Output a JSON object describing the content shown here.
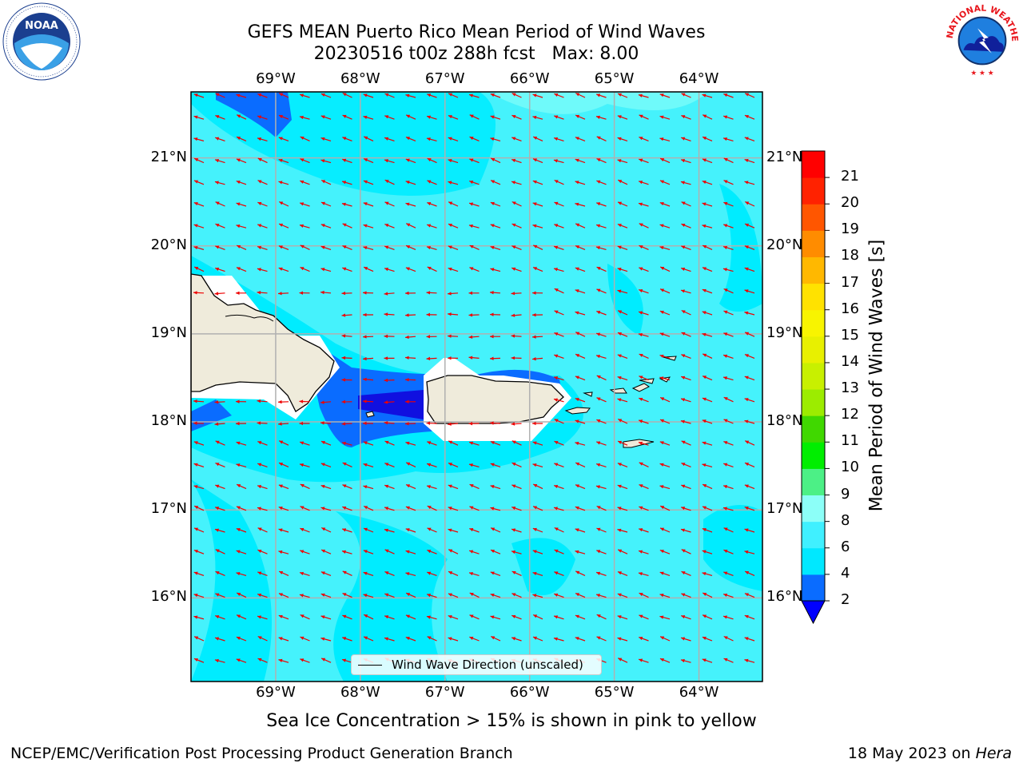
{
  "title": {
    "line1": "GEFS MEAN Puerto Rico Mean Period of Wind Waves",
    "line2": "20230516 t00z 288h fcst   Max: 8.00"
  },
  "logos": {
    "left": {
      "icon": "noaa-logo",
      "text": "NOAA"
    },
    "right": {
      "icon": "national-weather-service-logo",
      "text": "NATIONAL WEATHER SERVICE"
    }
  },
  "map": {
    "lon_labels": [
      "69°W",
      "68°W",
      "67°W",
      "66°W",
      "65°W",
      "64°W"
    ],
    "lat_labels": [
      "21°N",
      "20°N",
      "19°N",
      "18°N",
      "17°N",
      "16°N"
    ],
    "lon_range": [
      -70.0,
      -63.25
    ],
    "lat_range": [
      15.05,
      21.75
    ],
    "gridlines": true,
    "land_color": "#efebdb",
    "arrow_color": "#ee0000",
    "dominant_arrow_direction": "toward west-southwest"
  },
  "legend": {
    "label": "Wind Wave Direction (unscaled)",
    "placement": "bottom-center"
  },
  "colorbar": {
    "title": "Mean Period of Wind Waves [s]",
    "ticks": [
      "2",
      "4",
      "6",
      "8",
      "9",
      "10",
      "11",
      "12",
      "13",
      "14",
      "15",
      "16",
      "17",
      "18",
      "19",
      "20",
      "21"
    ],
    "extend_under_color": "#0000ff",
    "colors": [
      "#0a6cff",
      "#00e8ff",
      "#40f0ff",
      "#8cfff8",
      "#4cf086",
      "#00ee00",
      "#40d800",
      "#9cec00",
      "#c8f000",
      "#e8f000",
      "#f8f400",
      "#ffe200",
      "#ffb800",
      "#ff8c00",
      "#ff5600",
      "#ff2200",
      "#ff0000"
    ]
  },
  "notes": {
    "sea_ice": "Sea Ice Concentration > 15% is shown in pink to yellow",
    "footer_left": "NCEP/EMC/Verification Post Processing Product Generation Branch",
    "footer_right_date": "18 May 2023 on ",
    "footer_right_host": "Hera"
  }
}
